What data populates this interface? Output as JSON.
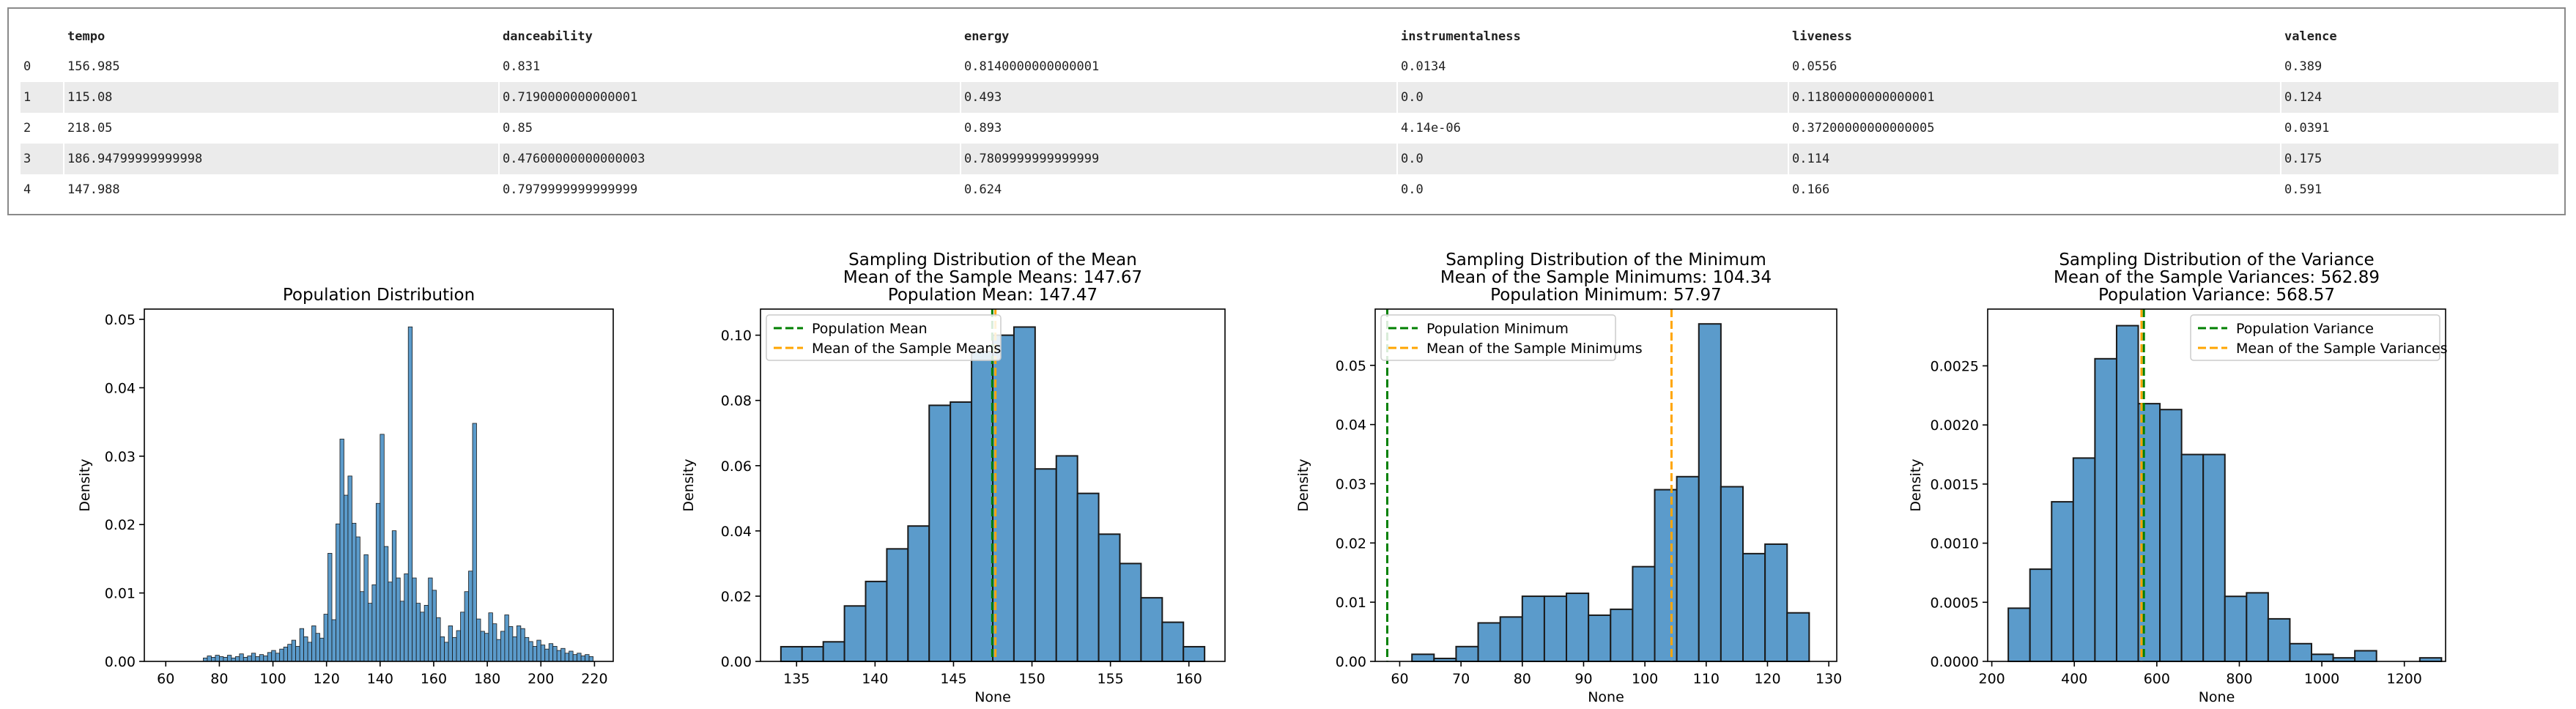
{
  "table": {
    "columns": [
      "tempo",
      "danceability",
      "energy",
      "instrumentalness",
      "liveness",
      "valence"
    ],
    "rows": [
      {
        "index": "0",
        "cells": [
          "156.985",
          "0.831",
          "0.8140000000000001",
          "0.0134",
          "0.0556",
          "0.389"
        ]
      },
      {
        "index": "1",
        "cells": [
          "115.08",
          "0.7190000000000001",
          "0.493",
          "0.0",
          "0.11800000000000001",
          "0.124"
        ]
      },
      {
        "index": "2",
        "cells": [
          "218.05",
          "0.85",
          "0.893",
          "4.14e-06",
          "0.37200000000000005",
          "0.0391"
        ]
      },
      {
        "index": "3",
        "cells": [
          "186.94799999999998",
          "0.47600000000000003",
          "0.7809999999999999",
          "0.0",
          "0.114",
          "0.175"
        ]
      },
      {
        "index": "4",
        "cells": [
          "147.988",
          "0.7979999999999999",
          "0.624",
          "0.0",
          "0.166",
          "0.591"
        ]
      }
    ]
  },
  "colors": {
    "bar_fill": "#5b9bcb",
    "bar_edge": "#1a1a1a",
    "pop_line": "#008000",
    "sample_line": "#ffa500"
  },
  "chart_data": [
    {
      "type": "bar",
      "title": "Population Distribution",
      "xlabel": "",
      "ylabel": "Density",
      "xlim": [
        52,
        227
      ],
      "ylim": [
        0,
        0.0515
      ],
      "xticks": [
        60,
        80,
        100,
        120,
        140,
        160,
        180,
        200,
        220
      ],
      "yticks": [
        0.0,
        0.01,
        0.02,
        0.03,
        0.04,
        0.05
      ],
      "ytick_labels": [
        "0.00",
        "0.01",
        "0.02",
        "0.03",
        "0.04",
        "0.05"
      ],
      "bin_width": 1.5,
      "bins": [
        [
          74,
          0.0005
        ],
        [
          75.5,
          0.0008
        ],
        [
          77,
          0.0006
        ],
        [
          78.5,
          0.0009
        ],
        [
          80,
          0.0007
        ],
        [
          81.5,
          0.0006
        ],
        [
          83,
          0.0009
        ],
        [
          84.5,
          0.0005
        ],
        [
          86,
          0.0007
        ],
        [
          87.5,
          0.0011
        ],
        [
          89,
          0.0006
        ],
        [
          90.5,
          0.0008
        ],
        [
          92,
          0.0012
        ],
        [
          93.5,
          0.0007
        ],
        [
          95,
          0.001
        ],
        [
          96.5,
          0.0008
        ],
        [
          98,
          0.0013
        ],
        [
          99.5,
          0.0016
        ],
        [
          101,
          0.0012
        ],
        [
          102.5,
          0.0018
        ],
        [
          104,
          0.0021
        ],
        [
          105.5,
          0.0025
        ],
        [
          107,
          0.0031
        ],
        [
          108.5,
          0.0022
        ],
        [
          110,
          0.0048
        ],
        [
          111.5,
          0.0036
        ],
        [
          113,
          0.0028
        ],
        [
          114.5,
          0.0052
        ],
        [
          116,
          0.0041
        ],
        [
          117.5,
          0.0034
        ],
        [
          119,
          0.0069
        ],
        [
          120.5,
          0.0158
        ],
        [
          122,
          0.0061
        ],
        [
          123.5,
          0.0201
        ],
        [
          125,
          0.0325
        ],
        [
          126.5,
          0.0243
        ],
        [
          128,
          0.0271
        ],
        [
          129.5,
          0.0202
        ],
        [
          131,
          0.0182
        ],
        [
          132.5,
          0.0102
        ],
        [
          134,
          0.0156
        ],
        [
          135.5,
          0.0085
        ],
        [
          137,
          0.0112
        ],
        [
          138.5,
          0.0231
        ],
        [
          140,
          0.0332
        ],
        [
          141.5,
          0.0168
        ],
        [
          143,
          0.0116
        ],
        [
          144.5,
          0.0191
        ],
        [
          146,
          0.0122
        ],
        [
          147.5,
          0.0088
        ],
        [
          149,
          0.0128
        ],
        [
          150.5,
          0.0489
        ],
        [
          152,
          0.0122
        ],
        [
          153.5,
          0.0085
        ],
        [
          155,
          0.0072
        ],
        [
          156.5,
          0.0082
        ],
        [
          158,
          0.0122
        ],
        [
          159.5,
          0.0104
        ],
        [
          161,
          0.0064
        ],
        [
          162.5,
          0.0036
        ],
        [
          164,
          0.0028
        ],
        [
          165.5,
          0.0052
        ],
        [
          167,
          0.0035
        ],
        [
          168.5,
          0.0045
        ],
        [
          170,
          0.0072
        ],
        [
          171.5,
          0.0102
        ],
        [
          173,
          0.0132
        ],
        [
          174.5,
          0.0348
        ],
        [
          176,
          0.0062
        ],
        [
          177.5,
          0.0044
        ],
        [
          179,
          0.0041
        ],
        [
          180.5,
          0.0071
        ],
        [
          182,
          0.0055
        ],
        [
          183.5,
          0.0032
        ],
        [
          185,
          0.0044
        ],
        [
          186.5,
          0.0068
        ],
        [
          188,
          0.0051
        ],
        [
          189.5,
          0.0036
        ],
        [
          191,
          0.0052
        ],
        [
          192.5,
          0.0048
        ],
        [
          194,
          0.0035
        ],
        [
          195.5,
          0.0029
        ],
        [
          197,
          0.0022
        ],
        [
          198.5,
          0.0031
        ],
        [
          200,
          0.0024
        ],
        [
          201.5,
          0.0018
        ],
        [
          203,
          0.0026
        ],
        [
          204.5,
          0.0022
        ],
        [
          206,
          0.0016
        ],
        [
          207.5,
          0.0019
        ],
        [
          209,
          0.0012
        ],
        [
          210.5,
          0.0015
        ],
        [
          212,
          0.001
        ],
        [
          213.5,
          0.0012
        ],
        [
          215,
          0.0008
        ],
        [
          216.5,
          0.001
        ],
        [
          218,
          0.0007
        ]
      ]
    },
    {
      "type": "bar",
      "title_lines": [
        "Sampling Distribution of the Mean",
        "Mean of the Sample Means: 147.67",
        "Population Mean: 147.47"
      ],
      "xlabel": "None",
      "ylabel": "Density",
      "xlim": [
        132.7,
        162.3
      ],
      "ylim": [
        0,
        0.108
      ],
      "xticks": [
        135,
        140,
        145,
        150,
        155,
        160
      ],
      "yticks": [
        0.0,
        0.02,
        0.04,
        0.06,
        0.08,
        0.1
      ],
      "ytick_labels": [
        "0.00",
        "0.02",
        "0.04",
        "0.06",
        "0.08",
        "0.10"
      ],
      "bin_width": 1.35,
      "bins": [
        [
          134.0,
          0.0045
        ],
        [
          135.35,
          0.0045
        ],
        [
          136.7,
          0.006
        ],
        [
          138.05,
          0.017
        ],
        [
          139.4,
          0.0245
        ],
        [
          140.75,
          0.0345
        ],
        [
          142.1,
          0.0415
        ],
        [
          143.45,
          0.0785
        ],
        [
          144.8,
          0.0795
        ],
        [
          146.15,
          0.095
        ],
        [
          147.5,
          0.1
        ],
        [
          148.85,
          0.1025
        ],
        [
          150.2,
          0.059
        ],
        [
          151.55,
          0.063
        ],
        [
          152.9,
          0.0515
        ],
        [
          154.25,
          0.039
        ],
        [
          155.6,
          0.03
        ],
        [
          156.95,
          0.0195
        ],
        [
          158.3,
          0.012
        ],
        [
          159.65,
          0.0045
        ]
      ],
      "vlines": [
        {
          "name": "Population Mean",
          "x": 147.47,
          "color": "#008000"
        },
        {
          "name": "Mean of the Sample Means",
          "x": 147.67,
          "color": "#ffa500"
        }
      ],
      "legend": "upper-left"
    },
    {
      "type": "bar",
      "title_lines": [
        "Sampling Distribution of the Minimum",
        "Mean of the Sample Minimums: 104.34",
        "Population Minimum: 57.97"
      ],
      "xlabel": "None",
      "ylabel": "Density",
      "xlim": [
        56,
        131.3
      ],
      "ylim": [
        0,
        0.0595
      ],
      "xticks": [
        60,
        70,
        80,
        90,
        100,
        110,
        120,
        130
      ],
      "yticks": [
        0.0,
        0.01,
        0.02,
        0.03,
        0.04,
        0.05
      ],
      "ytick_labels": [
        "0.00",
        "0.01",
        "0.02",
        "0.03",
        "0.04",
        "0.05"
      ],
      "bin_width": 3.6,
      "bins": [
        [
          62.0,
          0.0012
        ],
        [
          65.6,
          0.0005
        ],
        [
          69.2,
          0.0025
        ],
        [
          72.8,
          0.0065
        ],
        [
          76.4,
          0.0075
        ],
        [
          80.0,
          0.011
        ],
        [
          83.6,
          0.011
        ],
        [
          87.2,
          0.0115
        ],
        [
          90.8,
          0.0078
        ],
        [
          94.4,
          0.0088
        ],
        [
          98.0,
          0.016
        ],
        [
          101.6,
          0.029
        ],
        [
          105.2,
          0.0312
        ],
        [
          108.8,
          0.057
        ],
        [
          112.4,
          0.0295
        ],
        [
          116.0,
          0.0182
        ],
        [
          119.6,
          0.0198
        ],
        [
          123.2,
          0.0082
        ]
      ],
      "vlines": [
        {
          "name": "Population Minimum",
          "x": 57.97,
          "color": "#008000"
        },
        {
          "name": "Mean of the Sample Minimums",
          "x": 104.34,
          "color": "#ffa500"
        }
      ],
      "legend": "upper-left"
    },
    {
      "type": "bar",
      "title_lines": [
        "Sampling Distribution of the Variance",
        "Mean of the Sample Variances: 562.89",
        "Population Variance: 568.57"
      ],
      "xlabel": "None",
      "ylabel": "Density",
      "xlim": [
        190,
        1300
      ],
      "ylim": [
        0,
        0.00298
      ],
      "xticks": [
        200,
        400,
        600,
        800,
        1000,
        1200
      ],
      "yticks": [
        0.0,
        0.0005,
        0.001,
        0.0015,
        0.002,
        0.0025
      ],
      "ytick_labels": [
        "0.0000",
        "0.0005",
        "0.0010",
        "0.0015",
        "0.0020",
        "0.0025"
      ],
      "bin_width": 52.5,
      "bins": [
        [
          240,
          0.00045
        ],
        [
          292.5,
          0.00078
        ],
        [
          345,
          0.00135
        ],
        [
          397.5,
          0.00172
        ],
        [
          450,
          0.00256
        ],
        [
          502.5,
          0.00284
        ],
        [
          555,
          0.00218
        ],
        [
          607.5,
          0.00213
        ],
        [
          660,
          0.00175
        ],
        [
          712.5,
          0.00175
        ],
        [
          765,
          0.00055
        ],
        [
          817.5,
          0.00058
        ],
        [
          870,
          0.00036
        ],
        [
          922.5,
          0.00015
        ],
        [
          975,
          6e-05
        ],
        [
          1027.5,
          3e-05
        ],
        [
          1080,
          9e-05
        ],
        [
          1132.5,
          0.0
        ],
        [
          1185,
          0.0
        ],
        [
          1237.5,
          3e-05
        ]
      ],
      "vlines": [
        {
          "name": "Population Variance",
          "x": 568.57,
          "color": "#008000"
        },
        {
          "name": "Mean of the Sample Variances",
          "x": 562.89,
          "color": "#ffa500"
        }
      ],
      "legend": "upper-right"
    }
  ]
}
